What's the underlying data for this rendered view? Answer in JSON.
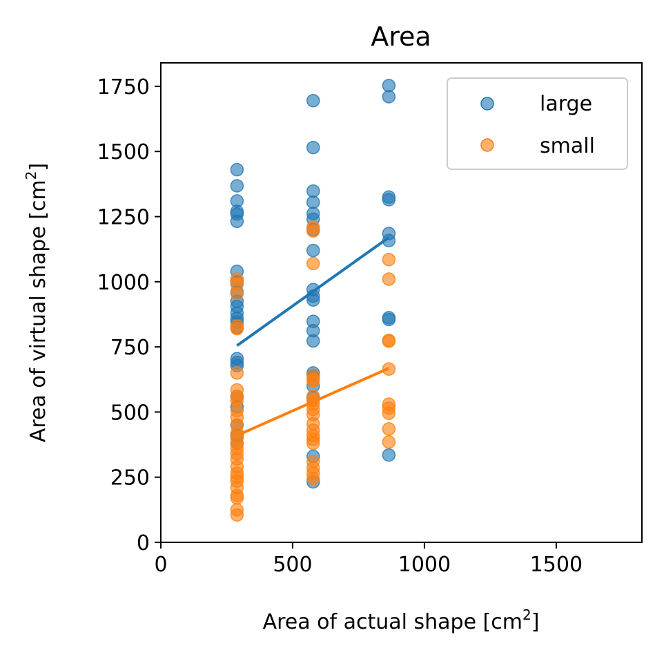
{
  "chart_data": {
    "type": "scatter",
    "title": "Area",
    "xlabel": "Area of actual shape [cm",
    "ylabel": "Area of virtual shape [cm",
    "label_superscript": "2",
    "label_suffix": "]",
    "xlim": [
      0,
      1825
    ],
    "ylim": [
      0,
      1840
    ],
    "xticks": [
      0,
      500,
      1000,
      1500
    ],
    "yticks": [
      0,
      250,
      500,
      750,
      1000,
      1250,
      1500,
      1750
    ],
    "xtick_labels": [
      "0",
      "500",
      "1000",
      "1500"
    ],
    "ytick_labels": [
      "0",
      "250",
      "500",
      "750",
      "1000",
      "1250",
      "1500",
      "1750"
    ],
    "grid": false,
    "legend_position": "top-right",
    "series": [
      {
        "name": "large",
        "color": "#1f77b4",
        "points": [
          [
            289,
            1430
          ],
          [
            289,
            1368
          ],
          [
            289,
            1310
          ],
          [
            289,
            1270
          ],
          [
            289,
            1260
          ],
          [
            289,
            1232
          ],
          [
            289,
            1040
          ],
          [
            289,
            1000
          ],
          [
            289,
            960
          ],
          [
            289,
            925
          ],
          [
            289,
            905
          ],
          [
            289,
            880
          ],
          [
            289,
            860
          ],
          [
            289,
            845
          ],
          [
            289,
            825
          ],
          [
            289,
            705
          ],
          [
            289,
            690
          ],
          [
            289,
            678
          ],
          [
            289,
            560
          ],
          [
            289,
            520
          ],
          [
            289,
            450
          ],
          [
            289,
            410
          ],
          [
            289,
            380
          ],
          [
            578,
            1695
          ],
          [
            578,
            1515
          ],
          [
            578,
            1348
          ],
          [
            578,
            1305
          ],
          [
            578,
            1262
          ],
          [
            578,
            1240
          ],
          [
            578,
            1200
          ],
          [
            578,
            1120
          ],
          [
            578,
            970
          ],
          [
            578,
            945
          ],
          [
            578,
            930
          ],
          [
            578,
            848
          ],
          [
            578,
            812
          ],
          [
            578,
            773
          ],
          [
            578,
            650
          ],
          [
            578,
            640
          ],
          [
            578,
            600
          ],
          [
            578,
            555
          ],
          [
            578,
            330
          ],
          [
            578,
            232
          ],
          [
            865,
            1753
          ],
          [
            865,
            1710
          ],
          [
            865,
            1325
          ],
          [
            865,
            1315
          ],
          [
            865,
            1185
          ],
          [
            865,
            1158
          ],
          [
            865,
            862
          ],
          [
            865,
            855
          ],
          [
            865,
            335
          ]
        ],
        "fit": [
          [
            289,
            755
          ],
          [
            865,
            1170
          ]
        ]
      },
      {
        "name": "small",
        "color": "#ff7f0e",
        "points": [
          [
            289,
            1010
          ],
          [
            289,
            990
          ],
          [
            289,
            955
          ],
          [
            289,
            830
          ],
          [
            289,
            820
          ],
          [
            289,
            650
          ],
          [
            289,
            585
          ],
          [
            289,
            560
          ],
          [
            289,
            545
          ],
          [
            289,
            505
          ],
          [
            289,
            480
          ],
          [
            289,
            450
          ],
          [
            289,
            420
          ],
          [
            289,
            400
          ],
          [
            289,
            380
          ],
          [
            289,
            360
          ],
          [
            289,
            340
          ],
          [
            289,
            320
          ],
          [
            289,
            290
          ],
          [
            289,
            265
          ],
          [
            289,
            250
          ],
          [
            289,
            235
          ],
          [
            289,
            210
          ],
          [
            289,
            180
          ],
          [
            289,
            170
          ],
          [
            289,
            125
          ],
          [
            289,
            105
          ],
          [
            578,
            1210
          ],
          [
            578,
            1195
          ],
          [
            578,
            1070
          ],
          [
            578,
            640
          ],
          [
            578,
            625
          ],
          [
            578,
            620
          ],
          [
            578,
            560
          ],
          [
            578,
            545
          ],
          [
            578,
            530
          ],
          [
            578,
            510
          ],
          [
            578,
            490
          ],
          [
            578,
            455
          ],
          [
            578,
            430
          ],
          [
            578,
            410
          ],
          [
            578,
            395
          ],
          [
            578,
            380
          ],
          [
            578,
            310
          ],
          [
            578,
            285
          ],
          [
            578,
            265
          ],
          [
            578,
            245
          ],
          [
            865,
            1085
          ],
          [
            865,
            1010
          ],
          [
            865,
            775
          ],
          [
            865,
            772
          ],
          [
            865,
            665
          ],
          [
            865,
            530
          ],
          [
            865,
            515
          ],
          [
            865,
            495
          ],
          [
            865,
            435
          ],
          [
            865,
            385
          ]
        ],
        "fit": [
          [
            289,
            410
          ],
          [
            865,
            668
          ]
        ]
      }
    ]
  }
}
